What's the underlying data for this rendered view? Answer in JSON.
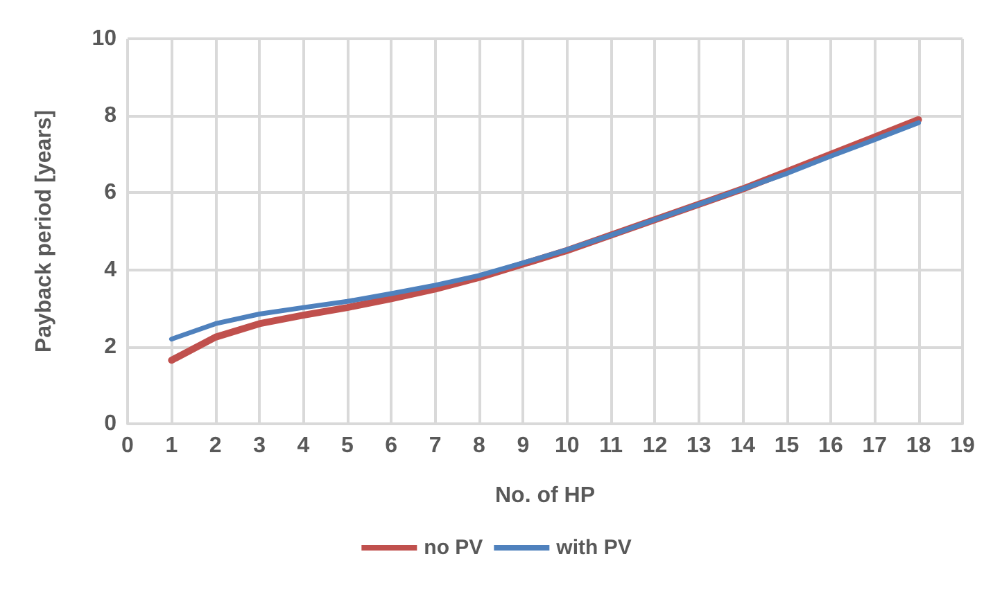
{
  "chart_data": {
    "type": "line",
    "xlabel": "No. of HP",
    "ylabel": "Payback period [years]",
    "x": [
      1,
      2,
      3,
      4,
      5,
      6,
      7,
      8,
      9,
      10,
      11,
      12,
      13,
      14,
      15,
      16,
      17,
      18
    ],
    "series": [
      {
        "name": "no PV",
        "color": "#c0504d",
        "values": [
          1.65,
          2.25,
          2.6,
          2.82,
          3.02,
          3.25,
          3.5,
          3.8,
          4.15,
          4.5,
          4.9,
          5.3,
          5.7,
          6.1,
          6.55,
          7.0,
          7.45,
          7.9
        ]
      },
      {
        "name": "with PV",
        "color": "#4f81bd",
        "values": [
          2.2,
          2.6,
          2.85,
          3.02,
          3.18,
          3.38,
          3.6,
          3.85,
          4.18,
          4.52,
          4.9,
          5.3,
          5.7,
          6.1,
          6.5,
          6.95,
          7.38,
          7.82
        ]
      }
    ],
    "xlim": [
      0,
      19
    ],
    "xticks": [
      0,
      1,
      2,
      3,
      4,
      5,
      6,
      7,
      8,
      9,
      10,
      11,
      12,
      13,
      14,
      15,
      16,
      17,
      18,
      19
    ],
    "ylim": [
      0,
      10
    ],
    "yticks": [
      0,
      2,
      4,
      6,
      8,
      10
    ],
    "grid": true,
    "legend": "bottom",
    "marker": "none",
    "line_style": "solid"
  }
}
